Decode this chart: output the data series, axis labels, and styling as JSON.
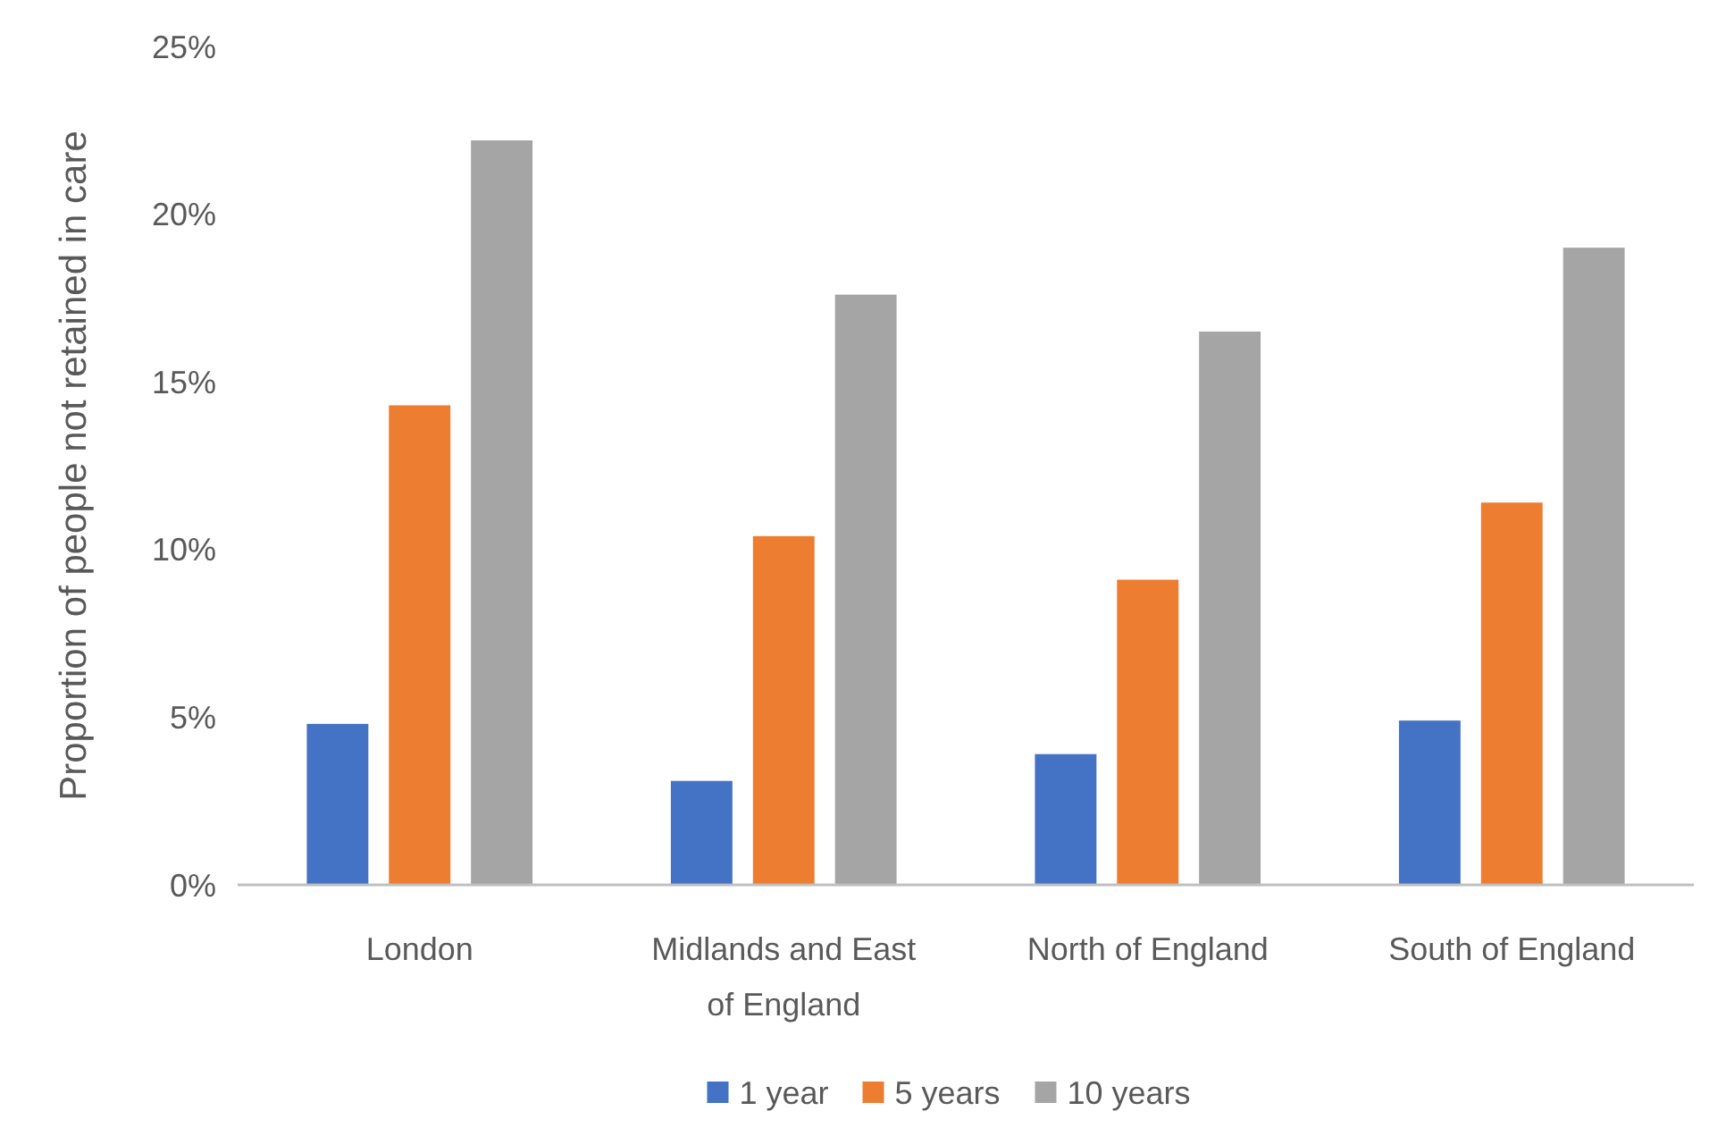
{
  "chart_data": {
    "type": "bar",
    "ylabel": "Proportion of people not retained in care",
    "categories": [
      "London",
      "Midlands and East of England",
      "North of England",
      "South of England"
    ],
    "series": [
      {
        "name": "1 year",
        "color": "#4472c4",
        "values": [
          4.8,
          3.1,
          3.9,
          4.9
        ]
      },
      {
        "name": "5 years",
        "color": "#ed7d31",
        "values": [
          14.3,
          10.4,
          9.1,
          11.4
        ]
      },
      {
        "name": "10 years",
        "color": "#a5a5a5",
        "values": [
          22.2,
          17.6,
          16.5,
          19.0
        ]
      }
    ],
    "ylim": [
      0,
      25
    ],
    "yticks": [
      {
        "value": 0,
        "label": "0%"
      },
      {
        "value": 5,
        "label": "5%"
      },
      {
        "value": 10,
        "label": "10%"
      },
      {
        "value": 15,
        "label": "15%"
      },
      {
        "value": 20,
        "label": "20%"
      },
      {
        "value": 25,
        "label": "25%"
      }
    ],
    "grid": false,
    "legend": "bottom"
  }
}
